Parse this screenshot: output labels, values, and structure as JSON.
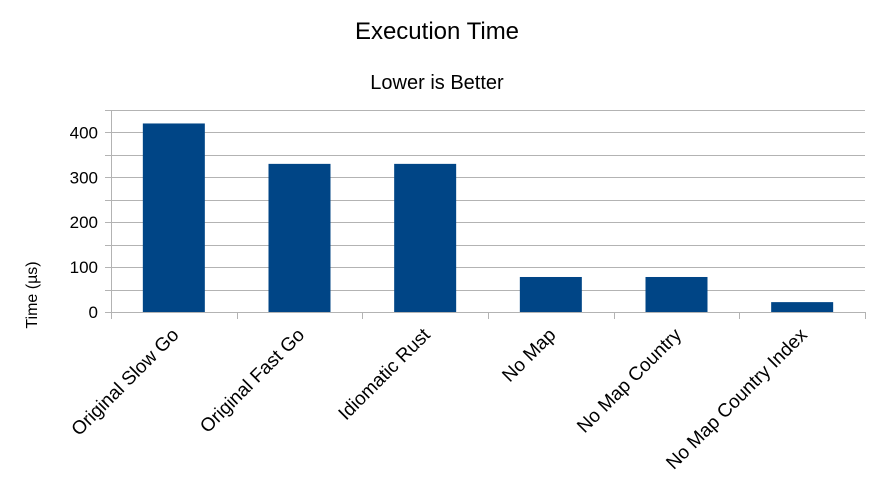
{
  "chart_data": {
    "type": "bar",
    "title": "Execution Time",
    "subtitle": "Lower is Better",
    "xlabel": "",
    "ylabel": "Time (µs)",
    "categories": [
      "Original Slow Go",
      "Original Fast Go",
      "Idiomatic Rust",
      "No Map",
      "No Map Country",
      "No Map Country Index"
    ],
    "values": [
      420,
      330,
      330,
      78,
      78,
      22
    ],
    "ylim": [
      0,
      450
    ],
    "yticks": [
      0,
      100,
      200,
      300,
      400
    ],
    "minor_gridlines": [
      50,
      150,
      250,
      350,
      450
    ],
    "grid": true,
    "legend": "none",
    "bar_color": "#004586",
    "grid_color": "#b3b3b3"
  }
}
